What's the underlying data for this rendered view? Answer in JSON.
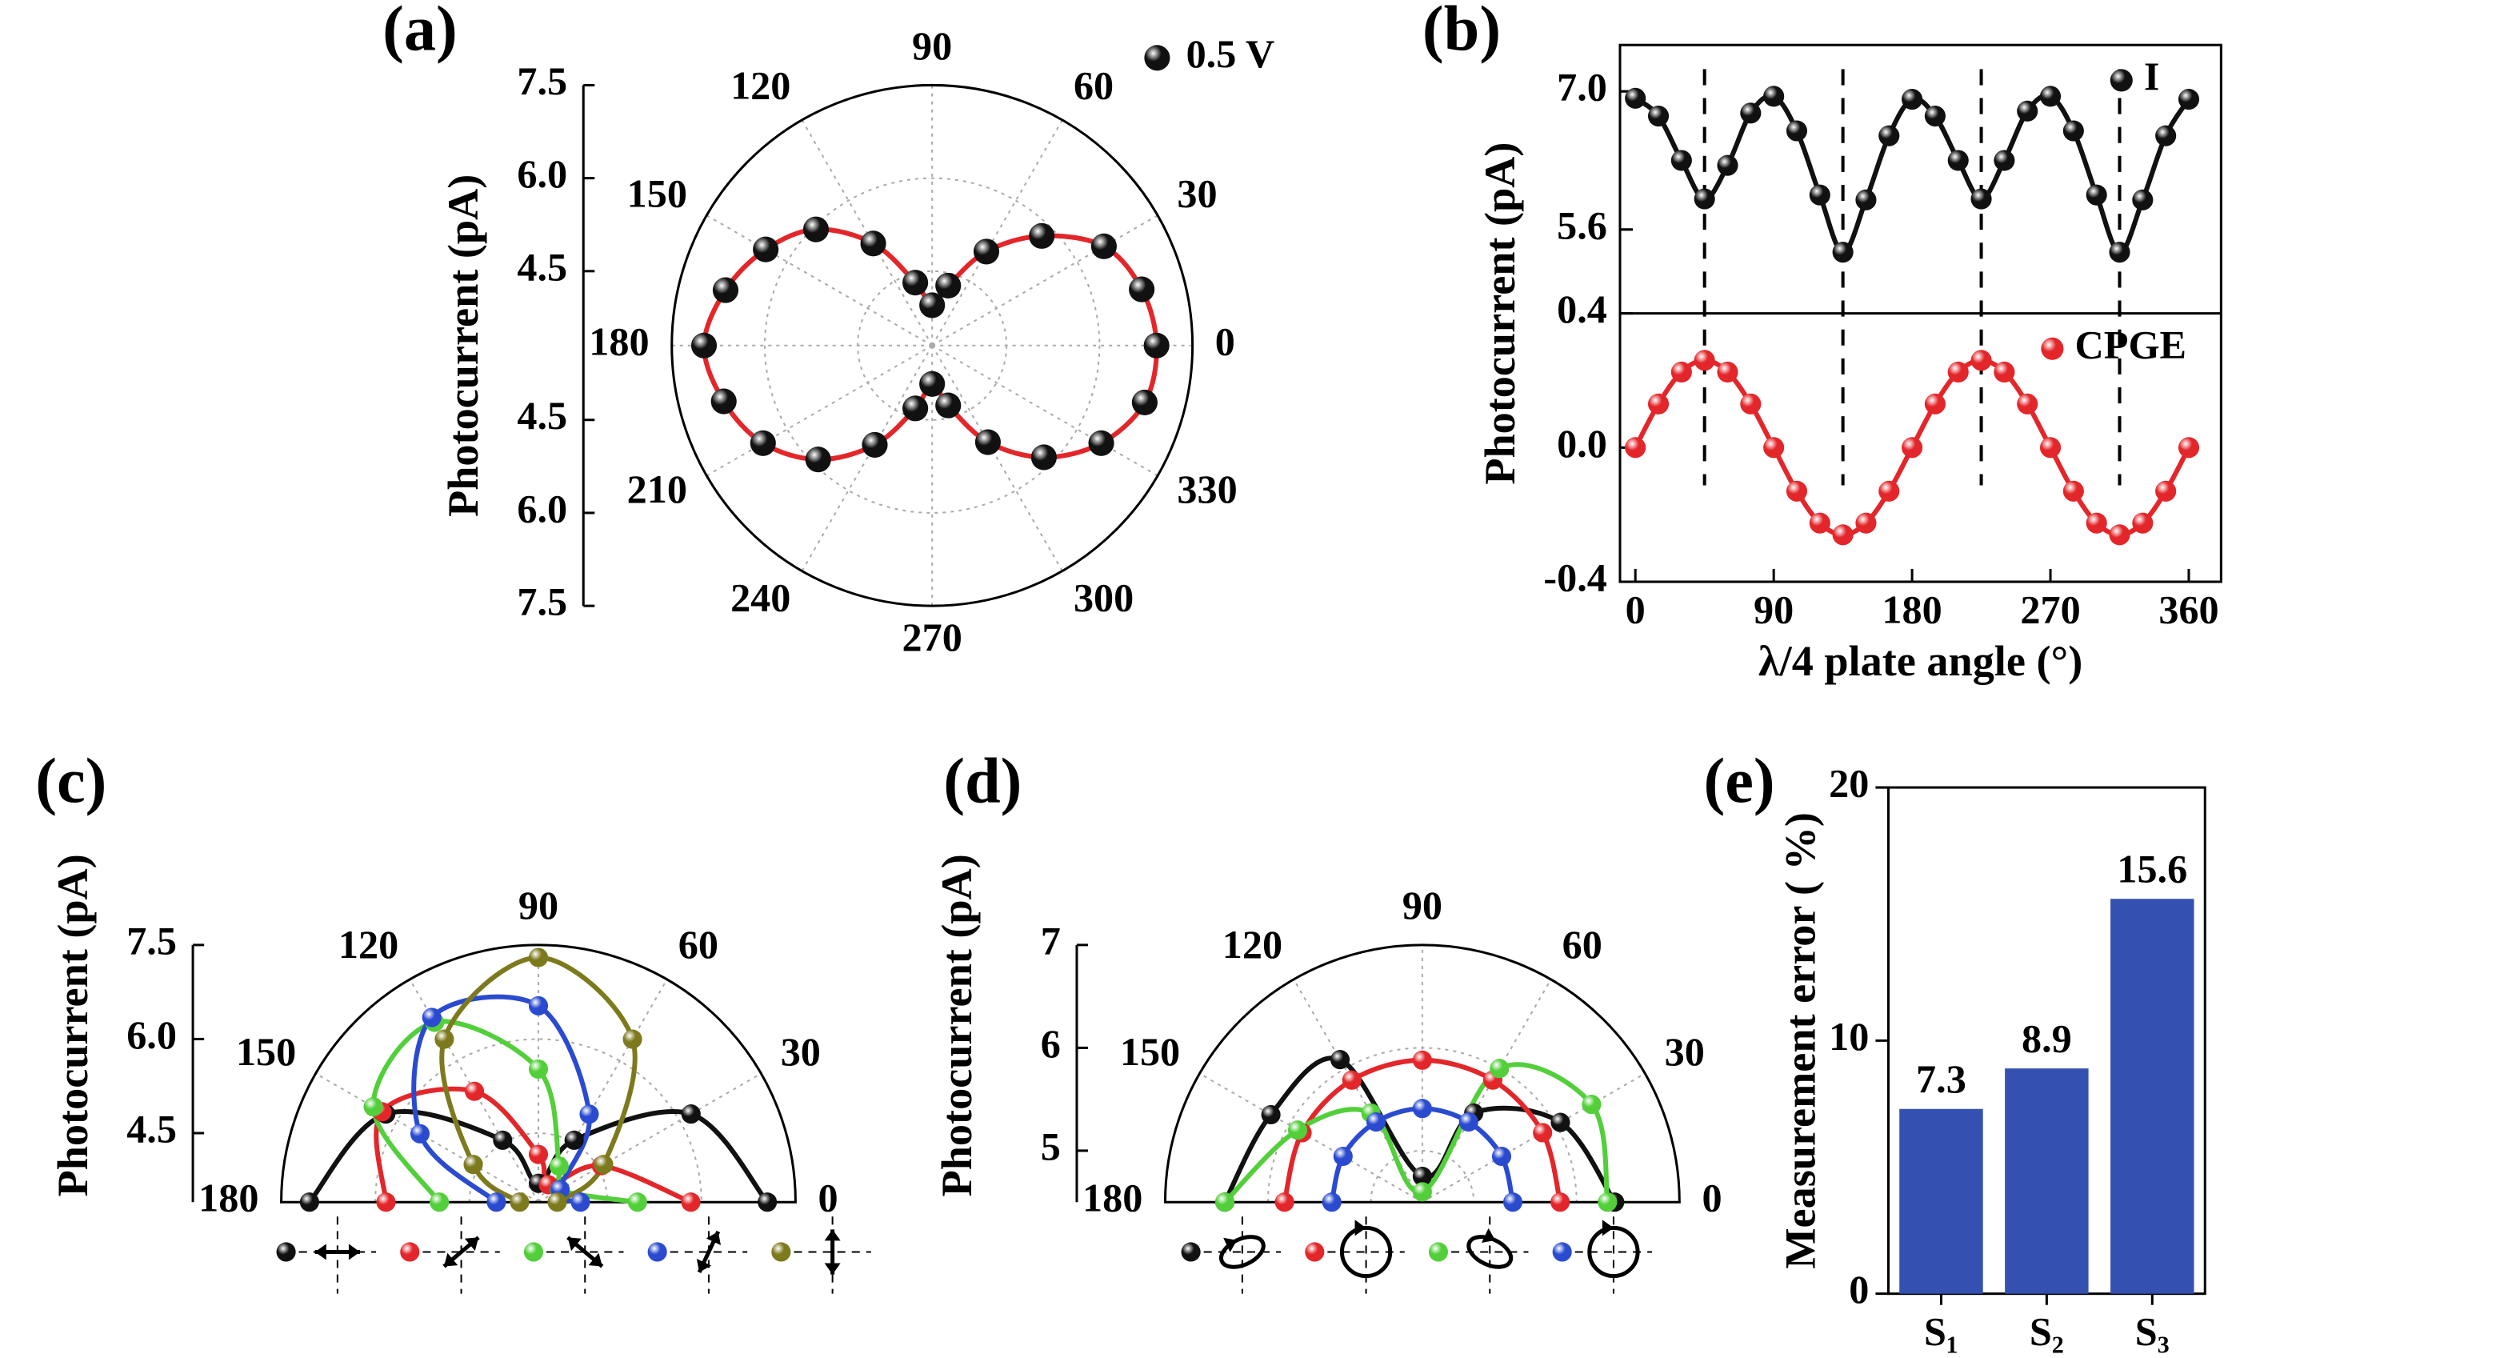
{
  "chart_data": [
    {
      "type": "polar",
      "panel": "(a)",
      "ylabel": "Photocurrent (pA)",
      "theta": [
        0,
        15,
        30,
        45,
        60,
        75,
        90,
        105,
        120,
        135,
        150,
        165,
        180,
        195,
        210,
        225,
        240,
        255,
        270,
        285,
        300,
        315,
        330,
        345
      ],
      "thetaticks": [
        0,
        30,
        60,
        90,
        120,
        150,
        180,
        210,
        240,
        270,
        300,
        330
      ],
      "rlim": [
        3.3,
        7.5
      ],
      "rticks": [
        4.5,
        {
          "value": 6,
          "label": "6.0"
        },
        7.5
      ],
      "series": [
        {
          "name": "0.5 V",
          "color": "#111111",
          "line_color": "#e3262a",
          "values": [
            6.92,
            6.8,
            6.5,
            5.8,
            5.05,
            4.3,
            3.95,
            4.35,
            5.2,
            5.95,
            6.4,
            6.75,
            6.98,
            6.78,
            6.45,
            5.9,
            5.15,
            4.35,
            3.92,
            4.3,
            5.1,
            5.85,
            6.45,
            6.85
          ]
        }
      ]
    },
    {
      "type": "stacked-line",
      "panel": "(b)",
      "ylabel": "Photocurrent (pA)",
      "xlabel": "λ/4 plate angle (°)",
      "x": [
        0,
        15,
        30,
        45,
        60,
        75,
        90,
        105,
        120,
        135,
        150,
        165,
        180,
        195,
        210,
        225,
        240,
        255,
        270,
        285,
        300,
        315,
        330,
        345,
        360
      ],
      "xlim": [
        -10,
        381
      ],
      "xticks": [
        0,
        90,
        180,
        270,
        360
      ],
      "vlines": [
        45,
        135,
        225,
        315
      ],
      "subplots": [
        {
          "ylim": [
            4.75,
            7.47
          ],
          "yticks": [
            {
              "value": 7,
              "label": "7.0"
            },
            5.6
          ],
          "series": [
            {
              "name": "I",
              "color": "#111111",
              "values": [
                6.93,
                6.75,
                6.3,
                5.91,
                6.25,
                6.78,
                6.95,
                6.6,
                5.95,
                5.37,
                5.9,
                6.55,
                6.92,
                6.75,
                6.3,
                5.91,
                6.3,
                6.8,
                6.95,
                6.6,
                5.95,
                5.37,
                5.9,
                6.55,
                6.92
              ]
            }
          ]
        },
        {
          "ylim": [
            -0.4,
            0.4
          ],
          "yticks": [
            0.4,
            {
              "value": 0,
              "label": "0.0"
            },
            -0.4
          ],
          "series": [
            {
              "name": "CPGE",
              "color": "#e3262a",
              "values": [
                0,
                0.13,
                0.225,
                0.26,
                0.225,
                0.13,
                0,
                -0.13,
                -0.225,
                -0.26,
                -0.225,
                -0.13,
                0,
                0.13,
                0.225,
                0.26,
                0.225,
                0.13,
                0,
                -0.13,
                -0.225,
                -0.26,
                -0.225,
                -0.13,
                0
              ]
            }
          ]
        }
      ]
    },
    {
      "type": "polar-half",
      "panel": "(c)",
      "ylabel": "Photocurrent (pA)",
      "theta": [
        0,
        30,
        60,
        90,
        120,
        150,
        180
      ],
      "thetaticks": [
        0,
        30,
        60,
        90,
        120,
        150,
        180
      ],
      "rlim": [
        3.4,
        7.5
      ],
      "rticks": [
        4.5,
        {
          "value": 6,
          "label": "6.0"
        },
        7.5
      ],
      "series": [
        {
          "color": "#111111",
          "values": [
            7.05,
            6.21,
            4.54,
            3.7,
            4.54,
            6.21,
            7.05
          ]
        },
        {
          "color": "#e3262a",
          "values": [
            5.83,
            4.56,
            3.72,
            4.16,
            5.44,
            6.28,
            5.83
          ]
        },
        {
          "color": "#52cf3a",
          "values": [
            4.98,
            3.79,
            4.06,
            5.52,
            6.71,
            6.44,
            4.98
          ]
        },
        {
          "color": "#2a4bd0",
          "values": [
            4.07,
            3.8,
            5.02,
            6.53,
            6.8,
            5.58,
            4.07
          ]
        },
        {
          "color": "#7d7a1e",
          "values": [
            3.7,
            4.6,
            6.4,
            7.3,
            6.4,
            4.6,
            3.7
          ]
        }
      ]
    },
    {
      "type": "polar-half",
      "panel": "(d)",
      "ylabel": "Photocurrent (pA)",
      "theta": [
        0,
        30,
        60,
        90,
        120,
        150,
        180
      ],
      "thetaticks": [
        0,
        30,
        60,
        90,
        120,
        150,
        180
      ],
      "rlim": [
        4.5,
        7
      ],
      "rticks": [
        5,
        6,
        7
      ],
      "series": [
        {
          "color": "#111111",
          "values": [
            6.37,
            6.05,
            5.5,
            4.75,
            6.1,
            6.2,
            6.42
          ]
        },
        {
          "color": "#e3262a",
          "values": [
            5.84,
            5.85,
            5.87,
            5.88,
            5.87,
            5.85,
            5.84
          ]
        },
        {
          "color": "#52cf3a",
          "values": [
            6.3,
            6.4,
            6.0,
            4.6,
            5.5,
            5.9,
            6.42
          ]
        },
        {
          "color": "#2a4bd0",
          "values": [
            5.38,
            5.39,
            5.4,
            5.41,
            5.4,
            5.39,
            5.38
          ]
        }
      ]
    },
    {
      "type": "bar",
      "panel": "(e)",
      "ylabel": "Measurement error ( %)",
      "categories": [
        "S₁",
        "S₂",
        "S₃"
      ],
      "values": [
        7.3,
        8.9,
        15.6
      ],
      "color": "#3451b2",
      "ylim": [
        0,
        20
      ],
      "yticks": [
        0,
        10,
        20
      ]
    }
  ]
}
